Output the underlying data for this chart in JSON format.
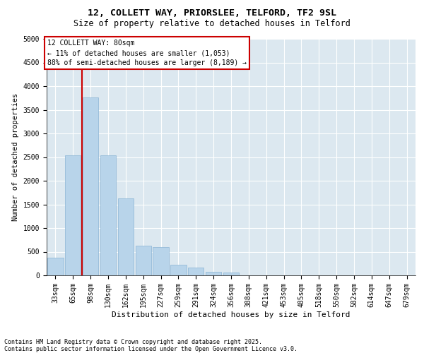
{
  "title1": "12, COLLETT WAY, PRIORSLEE, TELFORD, TF2 9SL",
  "title2": "Size of property relative to detached houses in Telford",
  "xlabel": "Distribution of detached houses by size in Telford",
  "ylabel": "Number of detached properties",
  "categories": [
    "33sqm",
    "65sqm",
    "98sqm",
    "130sqm",
    "162sqm",
    "195sqm",
    "227sqm",
    "259sqm",
    "291sqm",
    "324sqm",
    "356sqm",
    "388sqm",
    "421sqm",
    "453sqm",
    "485sqm",
    "518sqm",
    "550sqm",
    "582sqm",
    "614sqm",
    "647sqm",
    "679sqm"
  ],
  "values": [
    380,
    2530,
    3760,
    2530,
    1620,
    620,
    590,
    230,
    160,
    80,
    60,
    0,
    0,
    0,
    0,
    0,
    0,
    0,
    0,
    0,
    0
  ],
  "bar_color": "#b8d4ea",
  "bar_edge_color": "#8ab4d4",
  "vline_x": 1.5,
  "vline_color": "#cc0000",
  "annotation_text": "12 COLLETT WAY: 80sqm\n← 11% of detached houses are smaller (1,053)\n88% of semi-detached houses are larger (8,189) →",
  "annotation_box_facecolor": "#ffffff",
  "annotation_box_edgecolor": "#cc0000",
  "ylim": [
    0,
    5000
  ],
  "yticks": [
    0,
    500,
    1000,
    1500,
    2000,
    2500,
    3000,
    3500,
    4000,
    4500,
    5000
  ],
  "background_color": "#dce8f0",
  "grid_color": "#ffffff",
  "footer_text": "Contains HM Land Registry data © Crown copyright and database right 2025.\nContains public sector information licensed under the Open Government Licence v3.0.",
  "title1_fontsize": 9.5,
  "title2_fontsize": 8.5,
  "xlabel_fontsize": 8,
  "ylabel_fontsize": 7.5,
  "tick_fontsize": 7,
  "footer_fontsize": 6,
  "annot_fontsize": 7
}
